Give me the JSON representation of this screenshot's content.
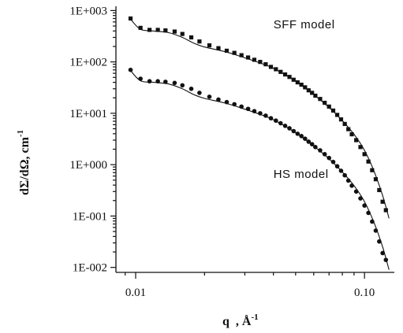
{
  "chart_data": {
    "type": "scatter",
    "title": "",
    "xscale": "log",
    "yscale": "log",
    "xlim": [
      0.0082,
      0.135
    ],
    "ylim": [
      0.008,
      1050
    ],
    "xticks": [
      0.01,
      0.1
    ],
    "xtick_labels": [
      "0.01",
      "0.10"
    ],
    "yticks": [
      1000,
      100,
      10,
      1,
      0.1,
      0.01
    ],
    "ytick_labels": [
      "1E+003",
      "1E+002",
      "1E+001",
      "1E+000",
      "1E-001",
      "1E-002"
    ],
    "ylabel": "dΣ/dΩ, cm",
    "ylabel_sup": "-1",
    "xlabel": "q  , Å",
    "xlabel_sup": "-1",
    "grid": false,
    "annotations": [
      {
        "text": "SFF model",
        "x": 0.04,
        "y": 450
      },
      {
        "text": "HS model",
        "x": 0.04,
        "y": 0.55
      }
    ],
    "series": [
      {
        "marker": "square",
        "points": [
          [
            0.0095,
            700
          ],
          [
            0.0105,
            460
          ],
          [
            0.0115,
            420
          ],
          [
            0.0125,
            420
          ],
          [
            0.0135,
            410
          ],
          [
            0.0148,
            390
          ],
          [
            0.016,
            350
          ],
          [
            0.0175,
            300
          ],
          [
            0.019,
            250
          ],
          [
            0.021,
            210
          ],
          [
            0.023,
            185
          ],
          [
            0.025,
            165
          ],
          [
            0.027,
            150
          ],
          [
            0.029,
            135
          ],
          [
            0.031,
            122
          ],
          [
            0.033,
            110
          ],
          [
            0.035,
            100
          ],
          [
            0.037,
            90
          ],
          [
            0.039,
            80
          ],
          [
            0.041,
            72
          ],
          [
            0.043,
            64
          ],
          [
            0.045,
            57
          ],
          [
            0.047,
            51
          ],
          [
            0.049,
            45
          ],
          [
            0.051,
            40
          ],
          [
            0.053,
            36
          ],
          [
            0.055,
            32
          ],
          [
            0.057,
            28
          ],
          [
            0.059,
            25
          ],
          [
            0.061,
            22
          ],
          [
            0.064,
            19
          ],
          [
            0.067,
            16
          ],
          [
            0.07,
            13.5
          ],
          [
            0.073,
            11.3
          ],
          [
            0.076,
            9.3
          ],
          [
            0.079,
            7.6
          ],
          [
            0.082,
            6.2
          ],
          [
            0.085,
            4.9
          ],
          [
            0.088,
            3.9
          ],
          [
            0.092,
            3.0
          ],
          [
            0.096,
            2.2
          ],
          [
            0.1,
            1.6
          ],
          [
            0.104,
            1.15
          ],
          [
            0.108,
            0.78
          ],
          [
            0.112,
            0.52
          ],
          [
            0.116,
            0.32
          ],
          [
            0.12,
            0.19
          ],
          [
            0.124,
            0.13
          ]
        ],
        "fit": [
          [
            0.0095,
            680
          ],
          [
            0.0105,
            430
          ],
          [
            0.012,
            400
          ],
          [
            0.014,
            370
          ],
          [
            0.016,
            300
          ],
          [
            0.018,
            230
          ],
          [
            0.02,
            195
          ],
          [
            0.025,
            155
          ],
          [
            0.03,
            120
          ],
          [
            0.035,
            95
          ],
          [
            0.04,
            75
          ],
          [
            0.05,
            42
          ],
          [
            0.06,
            23
          ],
          [
            0.07,
            13
          ],
          [
            0.08,
            7.2
          ],
          [
            0.09,
            3.9
          ],
          [
            0.1,
            1.9
          ],
          [
            0.11,
            0.75
          ],
          [
            0.12,
            0.25
          ],
          [
            0.128,
            0.09
          ]
        ]
      },
      {
        "marker": "circle",
        "points": [
          [
            0.0095,
            70
          ],
          [
            0.0105,
            47
          ],
          [
            0.0115,
            42
          ],
          [
            0.0125,
            42
          ],
          [
            0.0135,
            41
          ],
          [
            0.0148,
            39
          ],
          [
            0.016,
            35
          ],
          [
            0.0175,
            30
          ],
          [
            0.019,
            25
          ],
          [
            0.021,
            21
          ],
          [
            0.023,
            18.5
          ],
          [
            0.025,
            16.5
          ],
          [
            0.027,
            15
          ],
          [
            0.029,
            13.5
          ],
          [
            0.031,
            12.2
          ],
          [
            0.033,
            11
          ],
          [
            0.035,
            10
          ],
          [
            0.037,
            9
          ],
          [
            0.039,
            8
          ],
          [
            0.041,
            7.2
          ],
          [
            0.043,
            6.4
          ],
          [
            0.045,
            5.7
          ],
          [
            0.047,
            5.1
          ],
          [
            0.049,
            4.5
          ],
          [
            0.051,
            4.0
          ],
          [
            0.053,
            3.6
          ],
          [
            0.055,
            3.2
          ],
          [
            0.057,
            2.8
          ],
          [
            0.059,
            2.5
          ],
          [
            0.061,
            2.2
          ],
          [
            0.064,
            1.9
          ],
          [
            0.067,
            1.6
          ],
          [
            0.07,
            1.35
          ],
          [
            0.073,
            1.13
          ],
          [
            0.076,
            0.93
          ],
          [
            0.079,
            0.76
          ],
          [
            0.082,
            0.62
          ],
          [
            0.085,
            0.49
          ],
          [
            0.088,
            0.39
          ],
          [
            0.092,
            0.3
          ],
          [
            0.096,
            0.22
          ],
          [
            0.1,
            0.16
          ],
          [
            0.104,
            0.115
          ],
          [
            0.108,
            0.078
          ],
          [
            0.112,
            0.052
          ],
          [
            0.116,
            0.032
          ],
          [
            0.12,
            0.019
          ],
          [
            0.124,
            0.014
          ]
        ],
        "fit": [
          [
            0.0095,
            68
          ],
          [
            0.0105,
            43
          ],
          [
            0.012,
            40
          ],
          [
            0.014,
            37
          ],
          [
            0.016,
            30
          ],
          [
            0.018,
            23
          ],
          [
            0.02,
            19.5
          ],
          [
            0.025,
            15.5
          ],
          [
            0.03,
            12
          ],
          [
            0.035,
            9.5
          ],
          [
            0.04,
            7.5
          ],
          [
            0.05,
            4.2
          ],
          [
            0.06,
            2.3
          ],
          [
            0.07,
            1.3
          ],
          [
            0.08,
            0.72
          ],
          [
            0.09,
            0.39
          ],
          [
            0.1,
            0.19
          ],
          [
            0.11,
            0.075
          ],
          [
            0.12,
            0.025
          ],
          [
            0.128,
            0.009
          ]
        ]
      }
    ]
  }
}
